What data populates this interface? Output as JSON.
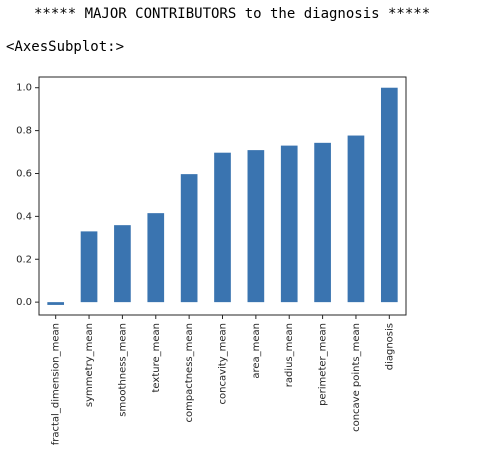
{
  "output": {
    "stdout": "***** MAJOR CONTRIBUTORS to the diagnosis *****",
    "repr": "<AxesSubplot:>"
  },
  "colors": {
    "bar": "#3a74b0",
    "axis": "#262626"
  },
  "chart_data": {
    "type": "bar",
    "categories": [
      "fractal_dimension_mean",
      "symmetry_mean",
      "smoothness_mean",
      "texture_mean",
      "compactness_mean",
      "concavity_mean",
      "area_mean",
      "radius_mean",
      "perimeter_mean",
      "concave points_mean",
      "diagnosis"
    ],
    "values": [
      -0.013,
      0.33,
      0.359,
      0.415,
      0.597,
      0.697,
      0.709,
      0.73,
      0.743,
      0.777,
      1.0
    ],
    "title": "",
    "xlabel": "",
    "ylabel": "",
    "ylim": [
      -0.06,
      1.05
    ],
    "yticks": [
      "0.0",
      "0.2",
      "0.4",
      "0.6",
      "0.8",
      "1.0"
    ],
    "grid": false,
    "legend": "none"
  }
}
